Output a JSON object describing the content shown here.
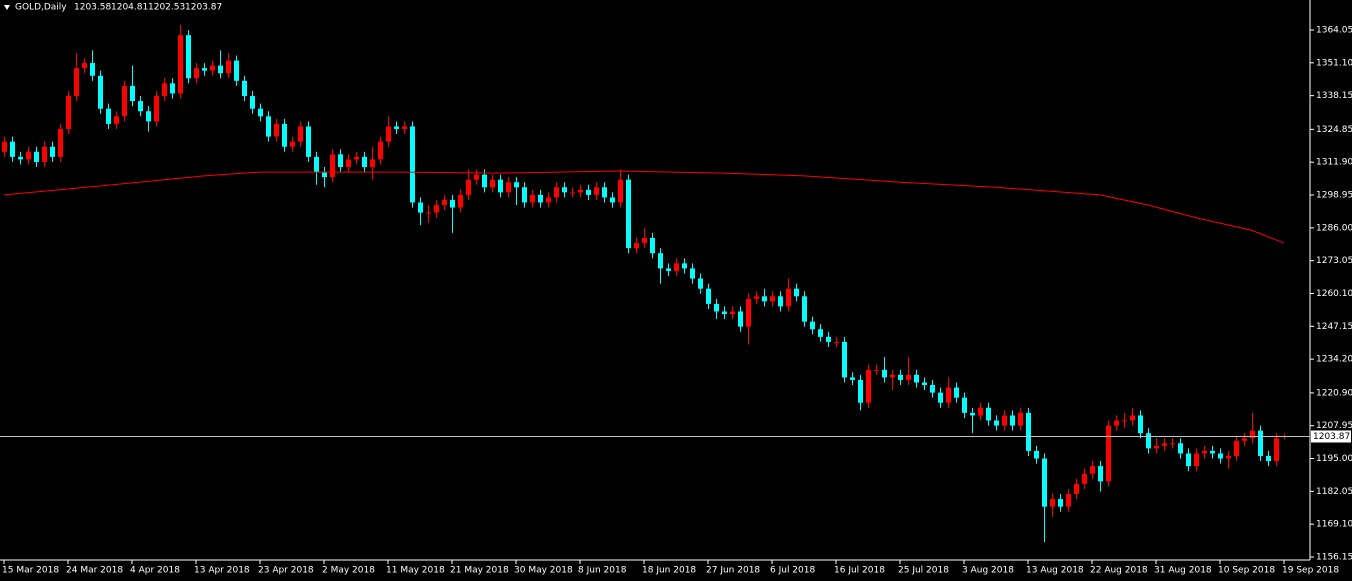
{
  "chart_data": {
    "type": "candlestick",
    "title": "GOLD,Daily",
    "up_color": "#ff0000",
    "down_color": "#00ffff",
    "open": [
      1316,
      1320,
      1314,
      1313,
      1316,
      1312,
      1318,
      1314,
      1325,
      1338,
      1349,
      1351,
      1346,
      1333,
      1327,
      1330,
      1342,
      1336,
      1332,
      1328,
      1338,
      1343,
      1339,
      1362,
      1345,
      1349,
      1348,
      1350,
      1347,
      1352,
      1344,
      1338,
      1333,
      1330,
      1322,
      1327,
      1318,
      1320,
      1326,
      1314,
      1308,
      1306,
      1315,
      1310,
      1313,
      1314,
      1310,
      1313,
      1320,
      1326,
      1325,
      1326,
      1296,
      1292,
      1292,
      1295,
      1297,
      1294,
      1299,
      1305,
      1307,
      1302,
      1305,
      1300,
      1304,
      1302,
      1296,
      1299,
      1296,
      1298,
      1302,
      1300,
      1300,
      1301,
      1299,
      1302,
      1298,
      1296,
      1305,
      1278,
      1280,
      1282,
      1276,
      1270,
      1269,
      1272,
      1270,
      1266,
      1262,
      1256,
      1253,
      1252,
      1253,
      1247,
      1258,
      1259,
      1257,
      1259,
      1255,
      1262,
      1259,
      1249,
      1246,
      1243,
      1241,
      1241,
      1227,
      1226,
      1217,
      1230,
      1230,
      1227,
      1228,
      1226,
      1228,
      1225,
      1224,
      1221,
      1217,
      1223,
      1219,
      1213,
      1212,
      1215,
      1210,
      1208,
      1212,
      1208,
      1213,
      1198,
      1195,
      1176,
      1179,
      1176,
      1181,
      1185,
      1189,
      1192,
      1186,
      1208,
      1210,
      1210,
      1212,
      1205,
      1199,
      1200,
      1201,
      1201,
      1197,
      1192,
      1197,
      1198,
      1197,
      1195,
      1196,
      1202,
      1203,
      1206,
      1196,
      1194,
      1203.58
    ],
    "high": [
      1322,
      1322,
      1316,
      1318,
      1318,
      1320,
      1320,
      1327,
      1340,
      1355,
      1353,
      1356,
      1348,
      1335,
      1332,
      1344,
      1350,
      1338,
      1334,
      1340,
      1345,
      1345,
      1366,
      1364,
      1351,
      1351,
      1352,
      1356,
      1355,
      1354,
      1346,
      1340,
      1335,
      1332,
      1329,
      1329,
      1322,
      1328,
      1328,
      1316,
      1310,
      1317,
      1317,
      1315,
      1316,
      1316,
      1318,
      1322,
      1330,
      1328,
      1328,
      1328,
      1298,
      1295,
      1297,
      1299,
      1299,
      1301,
      1309,
      1309,
      1309,
      1307,
      1307,
      1306,
      1306,
      1304,
      1301,
      1301,
      1300,
      1304,
      1304,
      1302,
      1303,
      1303,
      1304,
      1304,
      1300,
      1309,
      1307,
      1282,
      1286,
      1284,
      1278,
      1272,
      1274,
      1274,
      1272,
      1268,
      1264,
      1258,
      1255,
      1255,
      1255,
      1260,
      1261,
      1262,
      1261,
      1261,
      1266,
      1264,
      1261,
      1251,
      1248,
      1245,
      1243,
      1243,
      1229,
      1228,
      1232,
      1232,
      1235,
      1230,
      1230,
      1235,
      1230,
      1227,
      1226,
      1223,
      1227,
      1225,
      1221,
      1215,
      1217,
      1217,
      1212,
      1214,
      1214,
      1215,
      1215,
      1200,
      1197,
      1181,
      1181,
      1183,
      1187,
      1191,
      1194,
      1194,
      1210,
      1212,
      1213,
      1215,
      1214,
      1207,
      1203,
      1203,
      1203,
      1203,
      1199,
      1199,
      1200,
      1200,
      1199,
      1198,
      1204,
      1205,
      1213,
      1208,
      1198,
      1205,
      1204.81
    ],
    "low": [
      1314,
      1312,
      1311,
      1311,
      1310,
      1310,
      1312,
      1312,
      1323,
      1336,
      1347,
      1344,
      1331,
      1325,
      1325,
      1328,
      1334,
      1330,
      1324,
      1326,
      1336,
      1337,
      1337,
      1343,
      1343,
      1346,
      1346,
      1345,
      1345,
      1342,
      1336,
      1331,
      1328,
      1320,
      1320,
      1316,
      1316,
      1318,
      1312,
      1303,
      1302,
      1304,
      1308,
      1308,
      1311,
      1308,
      1305,
      1311,
      1318,
      1323,
      1323,
      1294,
      1287,
      1288,
      1290,
      1293,
      1284,
      1292,
      1297,
      1303,
      1300,
      1300,
      1298,
      1298,
      1295,
      1294,
      1294,
      1294,
      1294,
      1296,
      1298,
      1298,
      1298,
      1297,
      1297,
      1296,
      1294,
      1294,
      1276,
      1276,
      1278,
      1274,
      1264,
      1267,
      1267,
      1268,
      1264,
      1260,
      1254,
      1250,
      1250,
      1250,
      1245,
      1240,
      1256,
      1255,
      1255,
      1253,
      1253,
      1257,
      1247,
      1244,
      1241,
      1239,
      1239,
      1225,
      1224,
      1214,
      1215,
      1228,
      1225,
      1222,
      1224,
      1224,
      1223,
      1222,
      1219,
      1215,
      1215,
      1217,
      1211,
      1205,
      1210,
      1208,
      1206,
      1206,
      1206,
      1206,
      1196,
      1193,
      1162,
      1172,
      1174,
      1174,
      1179,
      1183,
      1187,
      1182,
      1184,
      1206,
      1207,
      1208,
      1203,
      1197,
      1197,
      1198,
      1199,
      1195,
      1190,
      1190,
      1195,
      1195,
      1193,
      1191,
      1194,
      1200,
      1201,
      1194,
      1192,
      1192,
      1202.53
    ],
    "close": [
      1320,
      1314,
      1313,
      1316,
      1312,
      1318,
      1314,
      1325,
      1338,
      1349,
      1351,
      1346,
      1333,
      1327,
      1330,
      1342,
      1336,
      1332,
      1328,
      1338,
      1343,
      1339,
      1362,
      1345,
      1349,
      1348,
      1350,
      1347,
      1352,
      1344,
      1338,
      1333,
      1330,
      1322,
      1327,
      1318,
      1320,
      1326,
      1314,
      1308,
      1306,
      1315,
      1310,
      1313,
      1314,
      1310,
      1313,
      1320,
      1326,
      1325,
      1326,
      1296,
      1292,
      1292,
      1295,
      1297,
      1294,
      1299,
      1305,
      1307,
      1302,
      1305,
      1300,
      1304,
      1302,
      1296,
      1299,
      1296,
      1298,
      1302,
      1300,
      1300,
      1301,
      1299,
      1302,
      1298,
      1296,
      1305,
      1278,
      1280,
      1282,
      1276,
      1270,
      1269,
      1272,
      1270,
      1266,
      1262,
      1256,
      1253,
      1252,
      1253,
      1247,
      1258,
      1259,
      1257,
      1259,
      1255,
      1262,
      1259,
      1249,
      1246,
      1243,
      1241,
      1241,
      1227,
      1226,
      1217,
      1230,
      1230,
      1227,
      1228,
      1226,
      1228,
      1225,
      1224,
      1221,
      1217,
      1223,
      1219,
      1213,
      1212,
      1215,
      1210,
      1208,
      1212,
      1208,
      1213,
      1198,
      1195,
      1176,
      1179,
      1176,
      1181,
      1185,
      1189,
      1192,
      1186,
      1208,
      1210,
      1210,
      1212,
      1205,
      1199,
      1200,
      1201,
      1201,
      1197,
      1192,
      1197,
      1198,
      1197,
      1195,
      1196,
      1202,
      1203,
      1206,
      1196,
      1194,
      1203,
      1203.87
    ],
    "ma": {
      "color": "#ff0000",
      "x": [
        0,
        12,
        25,
        32,
        50,
        62,
        77,
        90,
        100,
        112,
        124,
        137,
        143,
        149,
        156,
        160
      ],
      "values": [
        1299,
        1302.5,
        1306.5,
        1308,
        1308,
        1307.6,
        1308.4,
        1307.6,
        1306.5,
        1304,
        1302,
        1299,
        1295,
        1290,
        1285,
        1280
      ]
    },
    "xlim": [
      -0.5,
      163.25
    ],
    "ylim": [
      1154.97,
      1375.88
    ],
    "yticks": [
      {
        "value": 1364.05,
        "label": "1364.05"
      },
      {
        "value": 1351.1,
        "label": "1351.10"
      },
      {
        "value": 1338.15,
        "label": "1338.15"
      },
      {
        "value": 1324.85,
        "label": "1324.85"
      },
      {
        "value": 1311.9,
        "label": "1311.90"
      },
      {
        "value": 1298.95,
        "label": "1298.95"
      },
      {
        "value": 1286,
        "label": "1286.00"
      },
      {
        "value": 1273.05,
        "label": "1273.05"
      },
      {
        "value": 1260.1,
        "label": "1260.10"
      },
      {
        "value": 1247.15,
        "label": "1247.15"
      },
      {
        "value": 1234.2,
        "label": "1234.20"
      },
      {
        "value": 1220.9,
        "label": "1220.90"
      },
      {
        "value": 1207.95,
        "label": "1207.95"
      },
      {
        "value": 1195,
        "label": "1195.00"
      },
      {
        "value": 1182.05,
        "label": "1182.05"
      },
      {
        "value": 1169.1,
        "label": "1169.10"
      },
      {
        "value": 1156.15,
        "label": "1156.15"
      }
    ],
    "xticks": [
      {
        "value": 0,
        "label": "15 Mar 2018"
      },
      {
        "value": 8,
        "label": "24 Mar 2018"
      },
      {
        "value": 16,
        "label": "4 Apr 2018"
      },
      {
        "value": 24,
        "label": "13 Apr 2018"
      },
      {
        "value": 32,
        "label": "23 Apr 2018"
      },
      {
        "value": 40,
        "label": "2 May 2018"
      },
      {
        "value": 48,
        "label": "11 May 2018"
      },
      {
        "value": 56,
        "label": "21 May 2018"
      },
      {
        "value": 64,
        "label": "30 May 2018"
      },
      {
        "value": 72,
        "label": "8 Jun 2018"
      },
      {
        "value": 80,
        "label": "18 Jun 2018"
      },
      {
        "value": 88,
        "label": "27 Jun 2018"
      },
      {
        "value": 96,
        "label": "6 Jul 2018"
      },
      {
        "value": 104,
        "label": "16 Jul 2018"
      },
      {
        "value": 112,
        "label": "25 Jul 2018"
      },
      {
        "value": 120,
        "label": "3 Aug 2018"
      },
      {
        "value": 128,
        "label": "13 Aug 2018"
      },
      {
        "value": 136,
        "label": "22 Aug 2018"
      },
      {
        "value": 144,
        "label": "31 Aug 2018"
      },
      {
        "value": 152,
        "label": "10 Sep 2018"
      },
      {
        "value": 160,
        "label": "19 Sep 2018"
      }
    ]
  }
}
